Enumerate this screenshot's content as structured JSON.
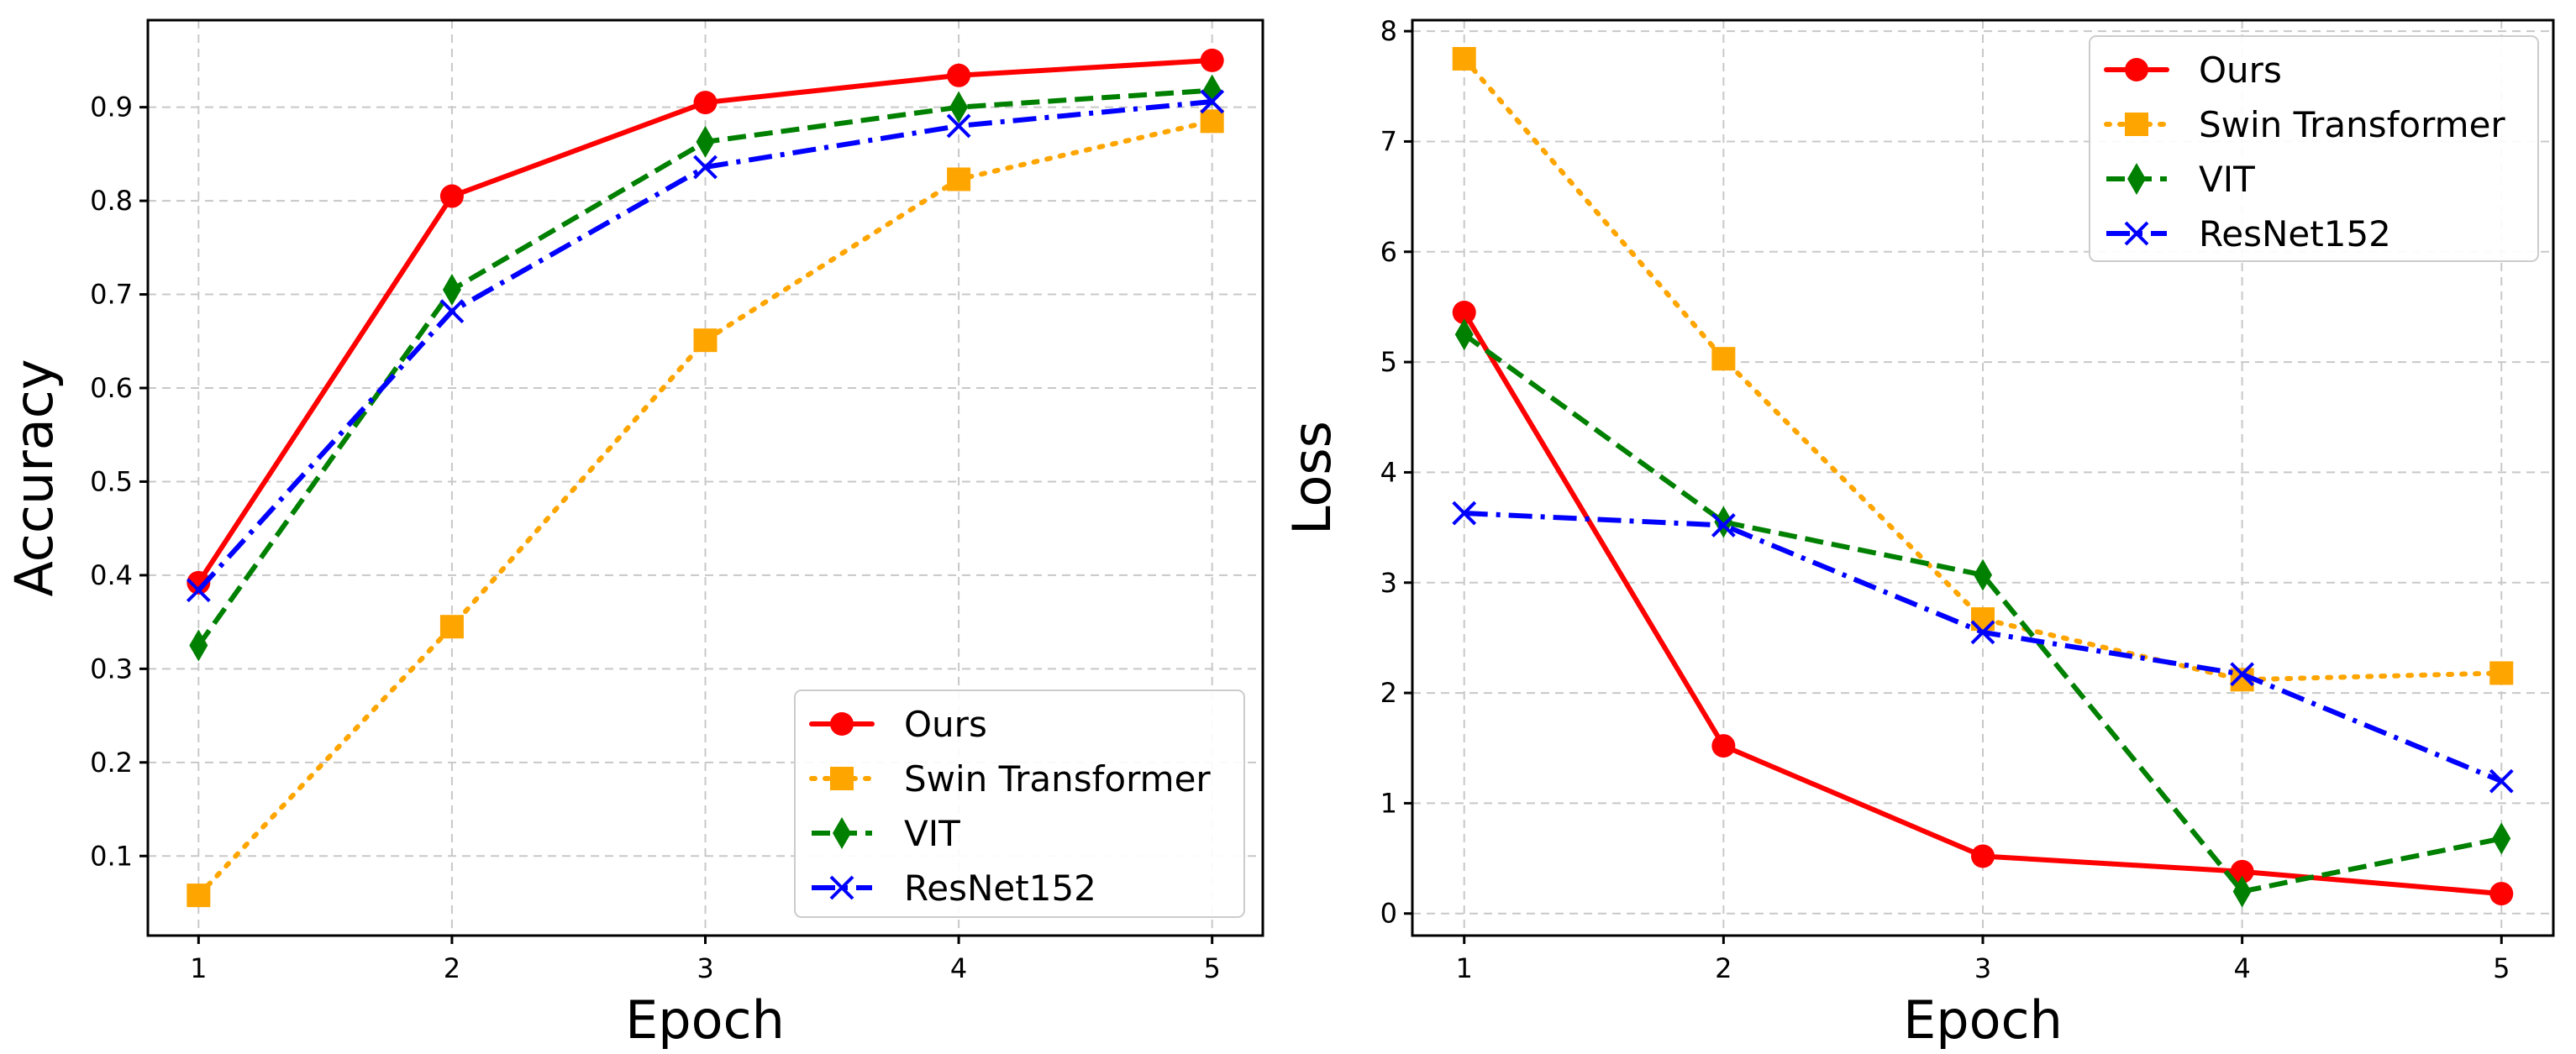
{
  "chart_data": [
    {
      "type": "line",
      "id": "accuracy",
      "xlabel": "Epoch",
      "ylabel": "Accuracy",
      "x": [
        1,
        2,
        3,
        4,
        5
      ],
      "xticks": [
        "1",
        "2",
        "3",
        "4",
        "5"
      ],
      "xlim": [
        0.8,
        5.2
      ],
      "yticks": [
        "0.1",
        "0.2",
        "0.3",
        "0.4",
        "0.5",
        "0.6",
        "0.7",
        "0.8",
        "0.9"
      ],
      "ylim": [
        0.015,
        0.993
      ],
      "grid": true,
      "legend_position": "lower-right",
      "series": [
        {
          "name": "Ours",
          "values": [
            0.392,
            0.805,
            0.905,
            0.934,
            0.95
          ],
          "color": "#ff0000",
          "style": "solid",
          "marker": "circle"
        },
        {
          "name": "Swin Transformer",
          "values": [
            0.058,
            0.345,
            0.651,
            0.823,
            0.885
          ],
          "color": "#ffa500",
          "style": "dotted",
          "marker": "square"
        },
        {
          "name": "VIT",
          "values": [
            0.325,
            0.705,
            0.863,
            0.9,
            0.918
          ],
          "color": "#008000",
          "style": "dashed",
          "marker": "thin_diamond"
        },
        {
          "name": "ResNet152",
          "values": [
            0.384,
            0.682,
            0.836,
            0.88,
            0.906
          ],
          "color": "#0000ff",
          "style": "dashdot",
          "marker": "x"
        }
      ]
    },
    {
      "type": "line",
      "id": "loss",
      "xlabel": "Epoch",
      "ylabel": "Loss",
      "x": [
        1,
        2,
        3,
        4,
        5
      ],
      "xticks": [
        "1",
        "2",
        "3",
        "4",
        "5"
      ],
      "xlim": [
        0.8,
        5.2
      ],
      "yticks": [
        "0",
        "1",
        "2",
        "3",
        "4",
        "5",
        "6",
        "7",
        "8"
      ],
      "ylim": [
        -0.2,
        8.1
      ],
      "grid": true,
      "legend_position": "upper-right",
      "series": [
        {
          "name": "Ours",
          "values": [
            5.45,
            1.52,
            0.52,
            0.38,
            0.18
          ],
          "color": "#ff0000",
          "style": "solid",
          "marker": "circle"
        },
        {
          "name": "Swin Transformer",
          "values": [
            7.75,
            5.03,
            2.67,
            2.12,
            2.18
          ],
          "color": "#ffa500",
          "style": "dotted",
          "marker": "square"
        },
        {
          "name": "VIT",
          "values": [
            5.25,
            3.55,
            3.07,
            0.2,
            0.68
          ],
          "color": "#008000",
          "style": "dashed",
          "marker": "thin_diamond"
        },
        {
          "name": "ResNet152",
          "values": [
            3.63,
            3.52,
            2.55,
            2.17,
            1.2
          ],
          "color": "#0000ff",
          "style": "dashdot",
          "marker": "x"
        }
      ]
    }
  ]
}
